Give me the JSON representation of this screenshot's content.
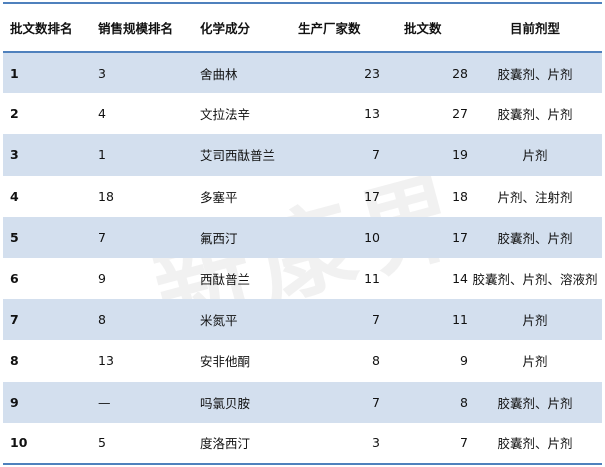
{
  "table": {
    "headers": [
      "批文数排名",
      "销售规模排名",
      "化学成分",
      "生产厂家数",
      "批文数",
      "目前剂型"
    ],
    "rows": [
      [
        "1",
        "3",
        "舍曲林",
        "23",
        "28",
        "胶囊剂、片剂"
      ],
      [
        "2",
        "4",
        "文拉法辛",
        "13",
        "27",
        "胶囊剂、片剂"
      ],
      [
        "3",
        "1",
        "艾司西酞普兰",
        "7",
        "19",
        "片剂"
      ],
      [
        "4",
        "18",
        "多塞平",
        "17",
        "18",
        "片剂、注射剂"
      ],
      [
        "5",
        "7",
        "氟西汀",
        "10",
        "17",
        "胶囊剂、片剂"
      ],
      [
        "6",
        "9",
        "西酞普兰",
        "11",
        "14",
        "胶囊剂、片剂、溶液剂"
      ],
      [
        "7",
        "8",
        "米氮平",
        "7",
        "11",
        "片剂"
      ],
      [
        "8",
        "13",
        "安非他酮",
        "8",
        "9",
        "片剂"
      ],
      [
        "9",
        "—",
        "吗氯贝胺",
        "7",
        "8",
        "胶囊剂、片剂"
      ],
      [
        "10",
        "5",
        "度洛西汀",
        "3",
        "7",
        "胶囊剂、片剂"
      ]
    ]
  },
  "watermark": "新康界",
  "colors": {
    "band": "#d3dfee",
    "rule": "#4f81bd"
  }
}
